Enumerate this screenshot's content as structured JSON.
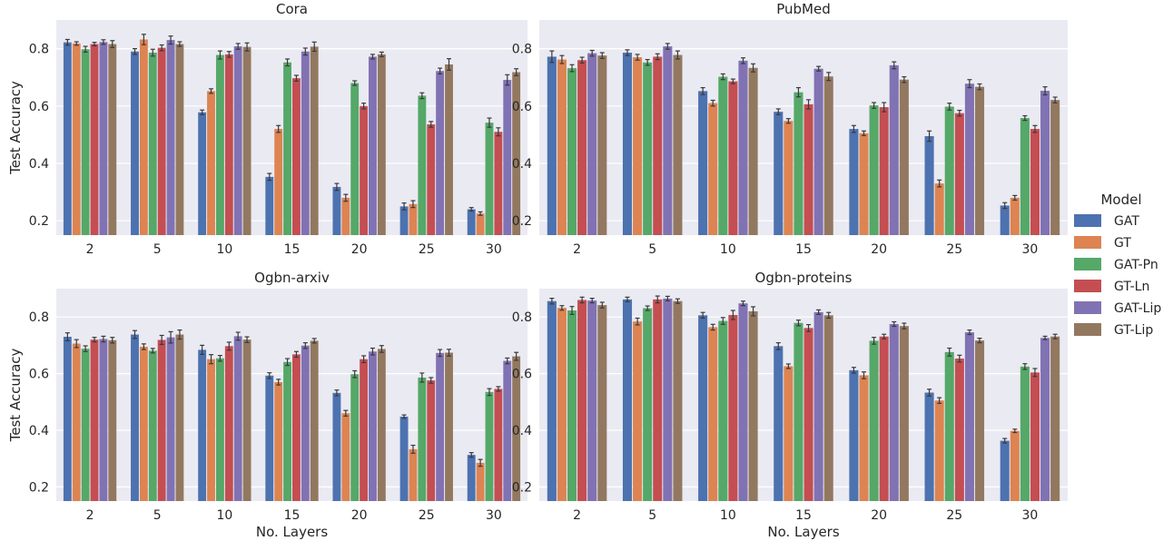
{
  "legend": {
    "title": "Model",
    "items": [
      {
        "label": "GAT",
        "color": "#4c72b0"
      },
      {
        "label": "GT",
        "color": "#dd8452"
      },
      {
        "label": "GAT-Pn",
        "color": "#55a868"
      },
      {
        "label": "GT-Ln",
        "color": "#c44e52"
      },
      {
        "label": "GAT-Lip",
        "color": "#8172b3"
      },
      {
        "label": "GT-Lip",
        "color": "#937860"
      }
    ]
  },
  "chart_data": [
    {
      "type": "bar",
      "title": "Cora",
      "xlabel": "",
      "ylabel": "Test Accuracy",
      "ylim": [
        0.15,
        0.9
      ],
      "yticks": [
        "0.2",
        "0.4",
        "0.6",
        "0.8"
      ],
      "categories": [
        "2",
        "5",
        "10",
        "15",
        "20",
        "25",
        "30"
      ],
      "grid": true,
      "series": [
        {
          "name": "GAT",
          "values": [
            0.822,
            0.79,
            0.578,
            0.353,
            0.318,
            0.25,
            0.24
          ],
          "errors": [
            0.01,
            0.01,
            0.008,
            0.012,
            0.012,
            0.012,
            0.006
          ]
        },
        {
          "name": "GT",
          "values": [
            0.818,
            0.832,
            0.652,
            0.52,
            0.28,
            0.258,
            0.225
          ],
          "errors": [
            0.006,
            0.018,
            0.008,
            0.012,
            0.012,
            0.012,
            0.006
          ]
        },
        {
          "name": "GAT-Pn",
          "values": [
            0.798,
            0.786,
            0.778,
            0.752,
            0.68,
            0.636,
            0.542
          ],
          "errors": [
            0.01,
            0.012,
            0.014,
            0.012,
            0.008,
            0.01,
            0.016
          ]
        },
        {
          "name": "GT-Ln",
          "values": [
            0.816,
            0.803,
            0.78,
            0.697,
            0.6,
            0.536,
            0.51
          ],
          "errors": [
            0.006,
            0.01,
            0.01,
            0.01,
            0.01,
            0.01,
            0.014
          ]
        },
        {
          "name": "GAT-Lip",
          "values": [
            0.823,
            0.83,
            0.808,
            0.79,
            0.772,
            0.722,
            0.691
          ],
          "errors": [
            0.008,
            0.014,
            0.01,
            0.012,
            0.008,
            0.01,
            0.018
          ]
        },
        {
          "name": "GT-Lip",
          "values": [
            0.816,
            0.816,
            0.806,
            0.807,
            0.78,
            0.745,
            0.718
          ],
          "errors": [
            0.012,
            0.008,
            0.014,
            0.016,
            0.008,
            0.02,
            0.012
          ]
        }
      ]
    },
    {
      "type": "bar",
      "title": "PubMed",
      "xlabel": "",
      "ylabel": "",
      "ylim": [
        0.15,
        0.9
      ],
      "yticks": [
        "0.2",
        "0.4",
        "0.6",
        "0.8"
      ],
      "categories": [
        "2",
        "5",
        "10",
        "15",
        "20",
        "25",
        "30"
      ],
      "grid": true,
      "series": [
        {
          "name": "GAT",
          "values": [
            0.772,
            0.786,
            0.652,
            0.58,
            0.52,
            0.495,
            0.253
          ],
          "errors": [
            0.02,
            0.01,
            0.012,
            0.01,
            0.012,
            0.018,
            0.01
          ]
        },
        {
          "name": "GT",
          "values": [
            0.762,
            0.77,
            0.61,
            0.548,
            0.505,
            0.33,
            0.28
          ],
          "errors": [
            0.014,
            0.01,
            0.01,
            0.008,
            0.008,
            0.012,
            0.008
          ]
        },
        {
          "name": "GAT-Pn",
          "values": [
            0.732,
            0.752,
            0.702,
            0.648,
            0.602,
            0.598,
            0.558
          ],
          "errors": [
            0.012,
            0.01,
            0.01,
            0.016,
            0.01,
            0.012,
            0.008
          ]
        },
        {
          "name": "GT-Ln",
          "values": [
            0.76,
            0.772,
            0.686,
            0.606,
            0.596,
            0.575,
            0.52
          ],
          "errors": [
            0.01,
            0.01,
            0.008,
            0.016,
            0.016,
            0.01,
            0.012
          ]
        },
        {
          "name": "GAT-Lip",
          "values": [
            0.784,
            0.808,
            0.758,
            0.73,
            0.742,
            0.678,
            0.653
          ],
          "errors": [
            0.01,
            0.01,
            0.01,
            0.008,
            0.012,
            0.014,
            0.014
          ]
        },
        {
          "name": "GT-Lip",
          "values": [
            0.776,
            0.778,
            0.733,
            0.703,
            0.692,
            0.667,
            0.621
          ],
          "errors": [
            0.01,
            0.014,
            0.014,
            0.014,
            0.01,
            0.01,
            0.01
          ]
        }
      ]
    },
    {
      "type": "bar",
      "title": "Ogbn-arxiv",
      "xlabel": "No. Layers",
      "ylabel": "Test Accuracy",
      "ylim": [
        0.15,
        0.9
      ],
      "yticks": [
        "0.2",
        "0.4",
        "0.6",
        "0.8"
      ],
      "categories": [
        "2",
        "5",
        "10",
        "15",
        "20",
        "25",
        "30"
      ],
      "grid": true,
      "series": [
        {
          "name": "GAT",
          "values": [
            0.73,
            0.738,
            0.684,
            0.593,
            0.532,
            0.448,
            0.313
          ],
          "errors": [
            0.014,
            0.014,
            0.016,
            0.01,
            0.01,
            0.006,
            0.008
          ]
        },
        {
          "name": "GT",
          "values": [
            0.706,
            0.695,
            0.651,
            0.57,
            0.46,
            0.333,
            0.285
          ],
          "errors": [
            0.014,
            0.01,
            0.016,
            0.01,
            0.01,
            0.014,
            0.012
          ]
        },
        {
          "name": "GAT-Pn",
          "values": [
            0.688,
            0.681,
            0.654,
            0.641,
            0.598,
            0.586,
            0.535
          ],
          "errors": [
            0.01,
            0.008,
            0.01,
            0.012,
            0.012,
            0.016,
            0.012
          ]
        },
        {
          "name": "GT-Ln",
          "values": [
            0.72,
            0.719,
            0.697,
            0.668,
            0.651,
            0.576,
            0.546
          ],
          "errors": [
            0.008,
            0.016,
            0.014,
            0.01,
            0.012,
            0.01,
            0.008
          ]
        },
        {
          "name": "GAT-Lip",
          "values": [
            0.722,
            0.728,
            0.732,
            0.699,
            0.678,
            0.673,
            0.645
          ],
          "errors": [
            0.01,
            0.02,
            0.014,
            0.01,
            0.012,
            0.012,
            0.01
          ]
        },
        {
          "name": "GT-Lip",
          "values": [
            0.718,
            0.738,
            0.72,
            0.716,
            0.687,
            0.674,
            0.661
          ],
          "errors": [
            0.01,
            0.016,
            0.01,
            0.008,
            0.012,
            0.012,
            0.014
          ]
        }
      ]
    },
    {
      "type": "bar",
      "title": "Ogbn-proteins",
      "xlabel": "No. Layers",
      "ylabel": "",
      "ylim": [
        0.15,
        0.9
      ],
      "yticks": [
        "0.2",
        "0.4",
        "0.6",
        "0.8"
      ],
      "categories": [
        "2",
        "5",
        "10",
        "15",
        "20",
        "25",
        "30"
      ],
      "grid": true,
      "series": [
        {
          "name": "GAT",
          "values": [
            0.856,
            0.862,
            0.806,
            0.697,
            0.612,
            0.533,
            0.363
          ],
          "errors": [
            0.01,
            0.008,
            0.01,
            0.012,
            0.01,
            0.012,
            0.008
          ]
        },
        {
          "name": "GT",
          "values": [
            0.832,
            0.784,
            0.764,
            0.626,
            0.594,
            0.505,
            0.398
          ],
          "errors": [
            0.008,
            0.012,
            0.01,
            0.008,
            0.012,
            0.01,
            0.006
          ]
        },
        {
          "name": "GAT-Pn",
          "values": [
            0.823,
            0.831,
            0.786,
            0.779,
            0.716,
            0.676,
            0.625
          ],
          "errors": [
            0.014,
            0.008,
            0.012,
            0.01,
            0.012,
            0.014,
            0.01
          ]
        },
        {
          "name": "GT-Ln",
          "values": [
            0.86,
            0.862,
            0.807,
            0.761,
            0.731,
            0.653,
            0.604
          ],
          "errors": [
            0.01,
            0.012,
            0.016,
            0.012,
            0.008,
            0.012,
            0.014
          ]
        },
        {
          "name": "GAT-Lip",
          "values": [
            0.858,
            0.865,
            0.848,
            0.817,
            0.775,
            0.746,
            0.726
          ],
          "errors": [
            0.008,
            0.008,
            0.008,
            0.008,
            0.008,
            0.008,
            0.006
          ]
        },
        {
          "name": "GT-Lip",
          "values": [
            0.842,
            0.856,
            0.82,
            0.806,
            0.768,
            0.717,
            0.731
          ],
          "errors": [
            0.01,
            0.008,
            0.016,
            0.01,
            0.01,
            0.008,
            0.008
          ]
        }
      ]
    }
  ]
}
